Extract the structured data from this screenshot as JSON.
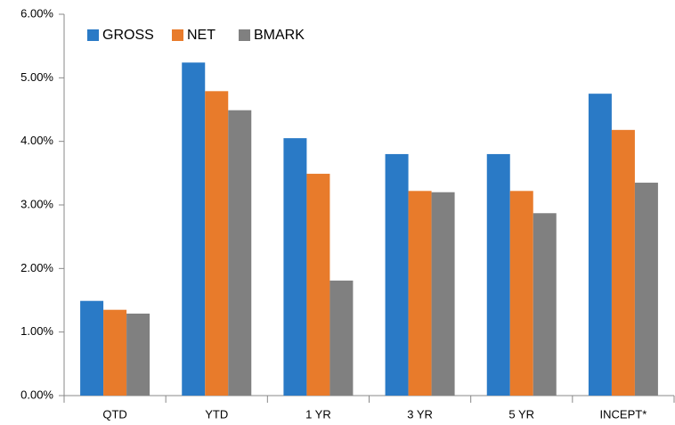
{
  "chart_data": {
    "type": "bar",
    "categories": [
      "QTD",
      "YTD",
      "1 YR",
      "3 YR",
      "5 YR",
      "INCEPT*"
    ],
    "series": [
      {
        "name": "GROSS",
        "color": "#2a7ac6",
        "values": [
          1.49,
          5.24,
          4.05,
          3.8,
          3.8,
          4.75
        ]
      },
      {
        "name": "NET",
        "color": "#e87b2b",
        "values": [
          1.35,
          4.79,
          3.49,
          3.22,
          3.22,
          4.18
        ]
      },
      {
        "name": "BMARK",
        "color": "#808080",
        "values": [
          1.29,
          4.49,
          1.81,
          3.2,
          2.87,
          3.35
        ]
      }
    ],
    "ylim": [
      0,
      6
    ],
    "yticks": [
      {
        "value": 0,
        "label": "0.00%"
      },
      {
        "value": 1,
        "label": "1.00%"
      },
      {
        "value": 2,
        "label": "2.00%"
      },
      {
        "value": 3,
        "label": "3.00%"
      },
      {
        "value": 4,
        "label": "4.00%"
      },
      {
        "value": 5,
        "label": "5.00%"
      },
      {
        "value": 6,
        "label": "6.00%"
      }
    ],
    "grid": false,
    "legend": "top-left"
  }
}
